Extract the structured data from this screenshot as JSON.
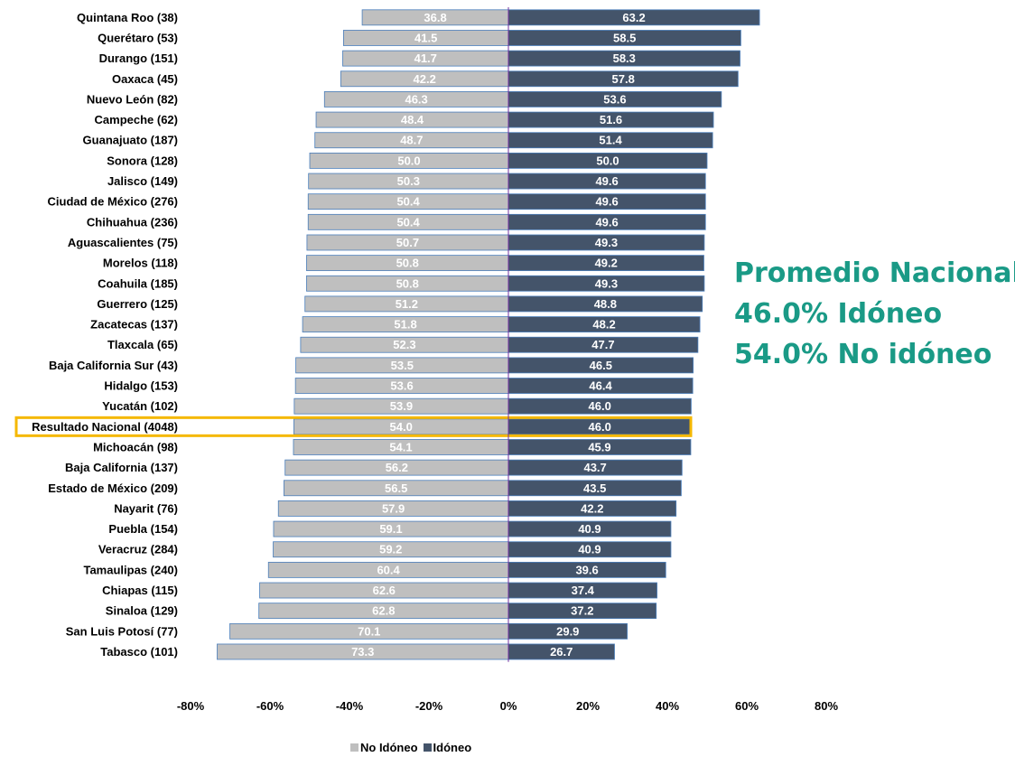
{
  "chart_data": {
    "type": "bar",
    "orientation": "horizontal",
    "categories": [
      "Quintana Roo (38)",
      "Querétaro (53)",
      "Durango (151)",
      "Oaxaca (45)",
      "Nuevo León (82)",
      "Campeche (62)",
      "Guanajuato (187)",
      "Sonora (128)",
      "Jalisco (149)",
      "Ciudad de México (276)",
      "Chihuahua (236)",
      "Aguascalientes (75)",
      "Morelos (118)",
      "Coahuila (185)",
      "Guerrero (125)",
      "Zacatecas (137)",
      "Tlaxcala (65)",
      "Baja California Sur (43)",
      "Hidalgo (153)",
      "Yucatán (102)",
      "Resultado Nacional (4048)",
      "Michoacán (98)",
      "Baja California (137)",
      "Estado de México (209)",
      "Nayarit (76)",
      "Puebla (154)",
      "Veracruz (284)",
      "Tamaulipas (240)",
      "Chiapas (115)",
      "Sinaloa (129)",
      "San Luis Potosí (77)",
      "Tabasco (101)"
    ],
    "series": [
      {
        "name": "No Idóneo",
        "color": "#bfbfbf",
        "direction": "negative",
        "values": [
          36.8,
          41.5,
          41.7,
          42.2,
          46.3,
          48.4,
          48.7,
          50.0,
          50.3,
          50.4,
          50.4,
          50.7,
          50.8,
          50.8,
          51.2,
          51.8,
          52.3,
          53.5,
          53.6,
          53.9,
          54.0,
          54.1,
          56.2,
          56.5,
          57.9,
          59.1,
          59.2,
          60.4,
          62.6,
          62.8,
          70.1,
          73.3
        ],
        "labels": [
          "36.8",
          "41.5",
          "41.7",
          "42.2",
          "46.3",
          "48.4",
          "48.7",
          "50.0",
          "50.3",
          "50.4",
          "50.4",
          "50.7",
          "50.8",
          "50.8",
          "51.2",
          "51.8",
          "52.3",
          "53.5",
          "53.6",
          "53.9",
          "54.0",
          "54.1",
          "56.2",
          "56.5",
          "57.9",
          "59.1",
          "59.2",
          "60.4",
          "62.6",
          "62.8",
          "70.1",
          "73.3"
        ]
      },
      {
        "name": "Idóneo",
        "color": "#44546a",
        "direction": "positive",
        "values": [
          63.2,
          58.5,
          58.3,
          57.8,
          53.6,
          51.6,
          51.4,
          50.0,
          49.6,
          49.6,
          49.6,
          49.3,
          49.2,
          49.3,
          48.8,
          48.2,
          47.7,
          46.5,
          46.4,
          46.0,
          46.0,
          45.9,
          43.7,
          43.5,
          42.2,
          40.9,
          40.9,
          39.6,
          37.4,
          37.2,
          29.9,
          26.7
        ],
        "labels": [
          "63.2",
          "58.5",
          "58.3",
          "57.8",
          "53.6",
          "51.6",
          "51.4",
          "50.0",
          "49.6",
          "49.6",
          "49.6",
          "49.3",
          "49.2",
          "49.3",
          "48.8",
          "48.2",
          "47.7",
          "46.5",
          "46.4",
          "46.0",
          "46.0",
          "45.9",
          "43.7",
          "43.5",
          "42.2",
          "40.9",
          "40.9",
          "39.6",
          "37.4",
          "37.2",
          "29.9",
          "26.7"
        ]
      }
    ],
    "xlim": [
      -80,
      80
    ],
    "xticks": [
      -80,
      -60,
      -40,
      -20,
      0,
      20,
      40,
      60,
      80
    ],
    "xtick_labels": [
      "-80%",
      "-60%",
      "-40%",
      "-20%",
      "0%",
      "20%",
      "40%",
      "60%",
      "80%"
    ],
    "highlighted_category": "Resultado Nacional (4048)",
    "highlight_color": "#f5b800",
    "axis_color": "#7030a0",
    "grid": false,
    "legend_position": "bottom",
    "legend": [
      "No Idóneo",
      "Idóneo"
    ]
  },
  "annotation": {
    "lines": [
      "Promedio Nacional",
      "46.0% Idóneo",
      "54.0% No idóneo"
    ],
    "color": "#1a9a86"
  }
}
